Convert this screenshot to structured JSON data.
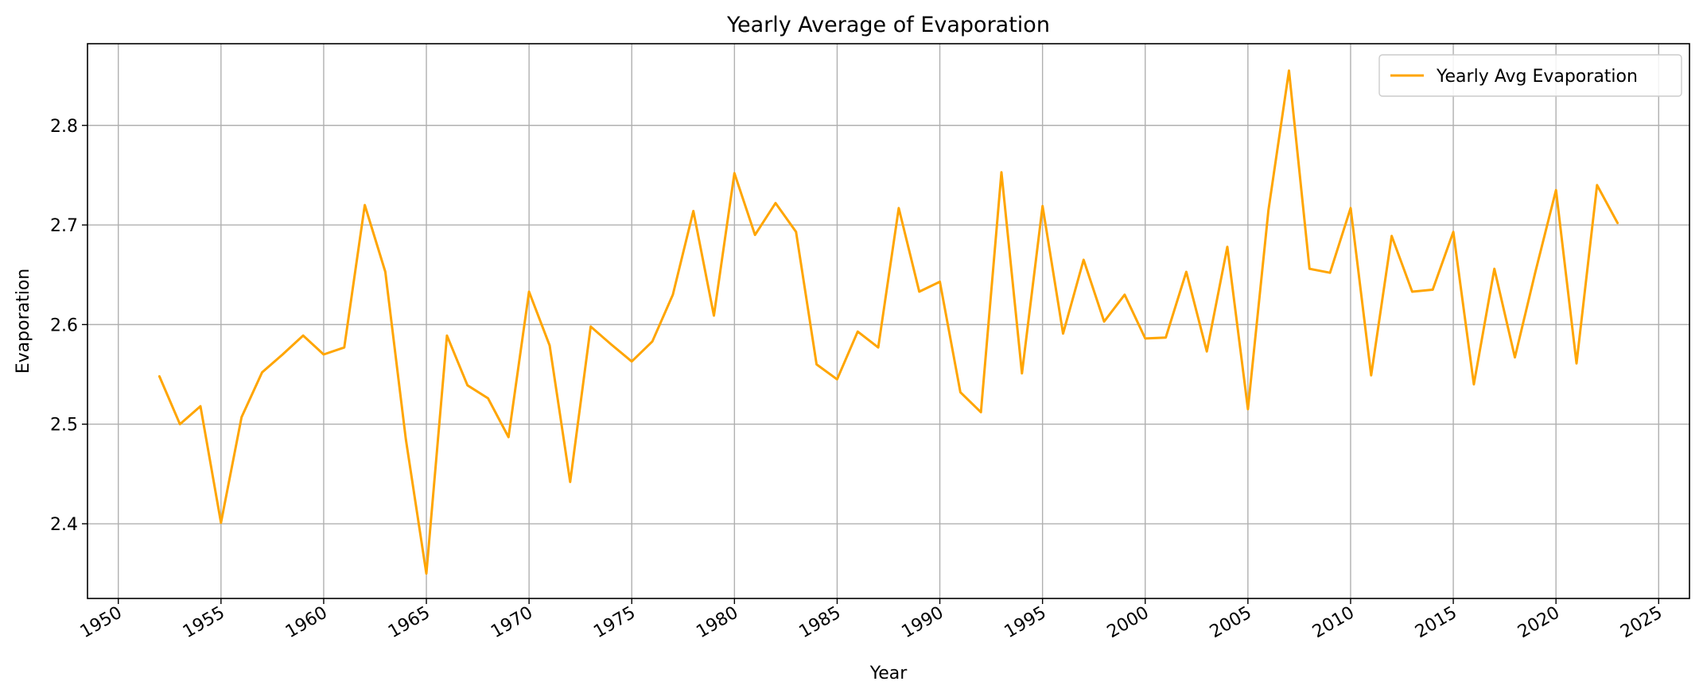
{
  "chart_data": {
    "type": "line",
    "title": "Yearly Average of Evaporation",
    "xlabel": "Year",
    "ylabel": "Evaporation",
    "xlim": [
      1948.5,
      2026.5
    ],
    "ylim": [
      2.325,
      2.882
    ],
    "xticks": [
      1950,
      1955,
      1960,
      1965,
      1970,
      1975,
      1980,
      1985,
      1990,
      1995,
      2000,
      2005,
      2010,
      2015,
      2020,
      2025
    ],
    "yticks": [
      2.4,
      2.5,
      2.6,
      2.7,
      2.8
    ],
    "grid": true,
    "legend_position": "top-right",
    "series": [
      {
        "name": "Yearly Avg Evaporation",
        "color": "#FFA500",
        "x": [
          1952,
          1953,
          1954,
          1955,
          1956,
          1957,
          1958,
          1959,
          1960,
          1961,
          1962,
          1963,
          1964,
          1965,
          1966,
          1967,
          1968,
          1969,
          1970,
          1971,
          1972,
          1973,
          1974,
          1975,
          1976,
          1977,
          1978,
          1979,
          1980,
          1981,
          1982,
          1983,
          1984,
          1985,
          1986,
          1987,
          1988,
          1989,
          1990,
          1991,
          1992,
          1993,
          1994,
          1995,
          1996,
          1997,
          1998,
          1999,
          2000,
          2001,
          2002,
          2003,
          2004,
          2005,
          2006,
          2007,
          2008,
          2009,
          2010,
          2011,
          2012,
          2013,
          2014,
          2015,
          2016,
          2017,
          2018,
          2019,
          2020,
          2021,
          2022,
          2023
        ],
        "values": [
          2.548,
          2.5,
          2.518,
          2.401,
          2.507,
          2.552,
          2.57,
          2.589,
          2.57,
          2.577,
          2.72,
          2.653,
          2.485,
          2.35,
          2.589,
          2.539,
          2.526,
          2.487,
          2.633,
          2.579,
          2.442,
          2.598,
          2.58,
          2.563,
          2.583,
          2.63,
          2.714,
          2.609,
          2.752,
          2.69,
          2.722,
          2.693,
          2.56,
          2.545,
          2.593,
          2.577,
          2.717,
          2.633,
          2.643,
          2.532,
          2.512,
          2.753,
          2.551,
          2.719,
          2.591,
          2.665,
          2.603,
          2.63,
          2.586,
          2.587,
          2.653,
          2.573,
          2.678,
          2.515,
          2.715,
          2.855,
          2.656,
          2.652,
          2.717,
          2.549,
          2.689,
          2.633,
          2.635,
          2.693,
          2.54,
          2.656,
          2.567,
          2.653,
          2.735,
          2.561,
          2.74,
          2.702
        ]
      }
    ]
  }
}
